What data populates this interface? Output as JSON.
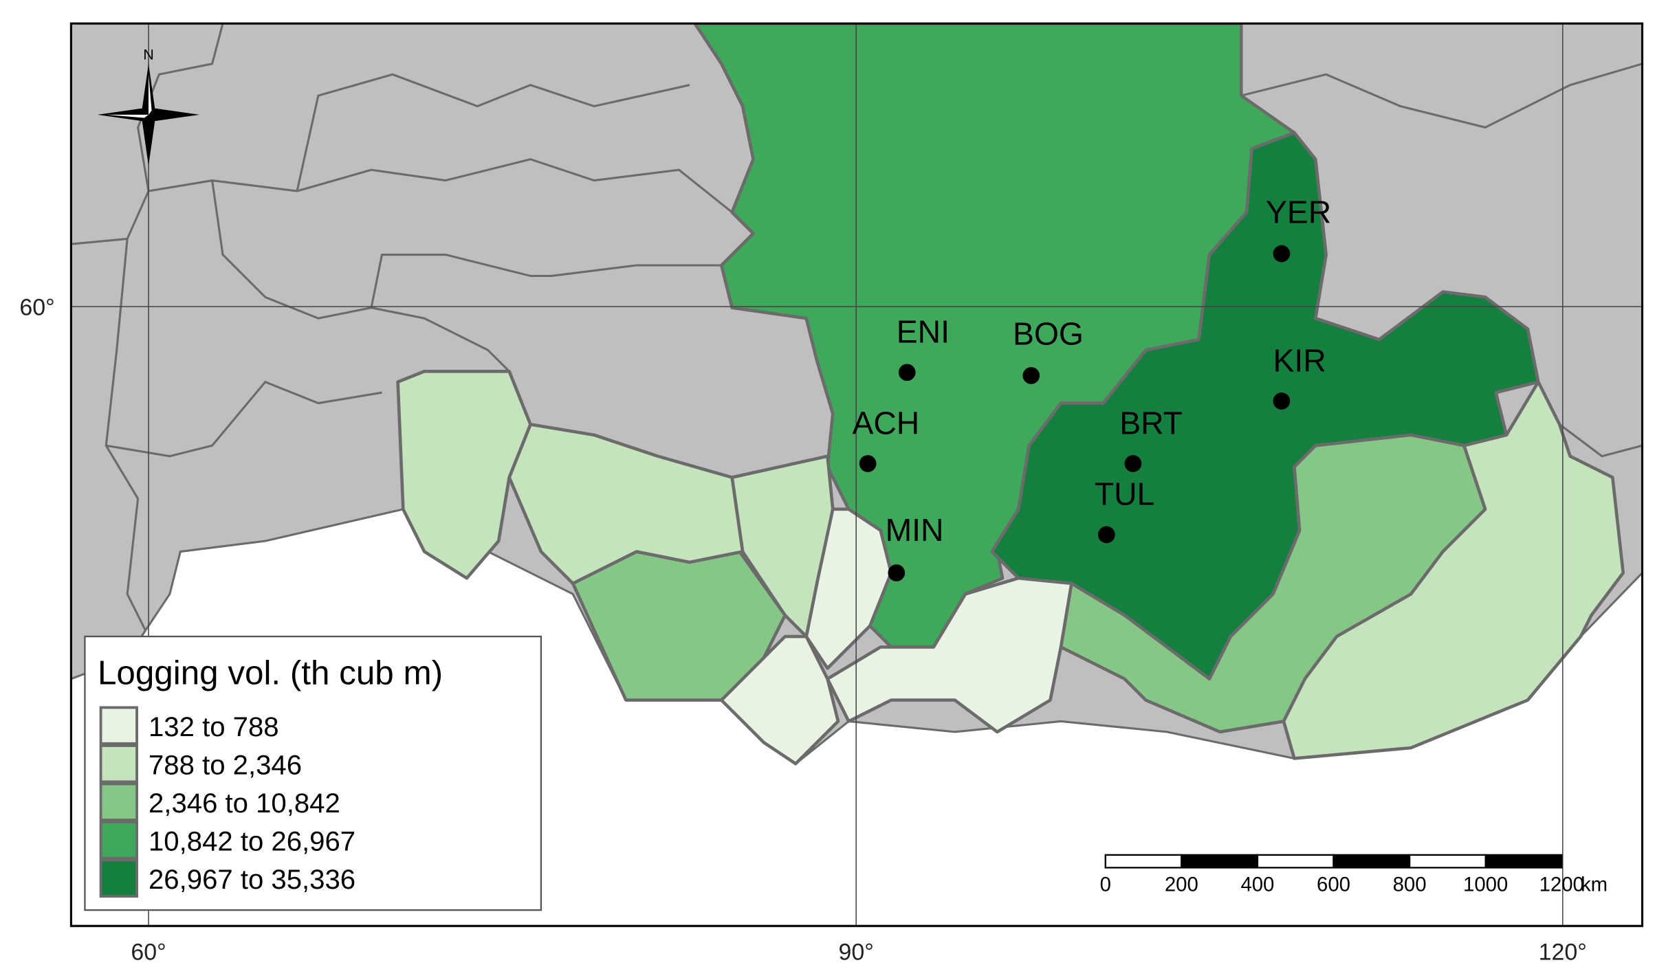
{
  "north": "N",
  "graticule": {
    "lon_labels": [
      "60°",
      "90°",
      "120°"
    ],
    "lat_labels": [
      "60°"
    ]
  },
  "legend": {
    "title": "Logging vol. (th cub m)",
    "items": [
      {
        "label": "132 to 788",
        "color": "#e8f3e4"
      },
      {
        "label": "788 to 2,346",
        "color": "#c5e3bd"
      },
      {
        "label": "2,346 to 10,842",
        "color": "#86c787"
      },
      {
        "label": "10,842 to 26,967",
        "color": "#3fa85a"
      },
      {
        "label": "26,967 to 35,336",
        "color": "#157f3f"
      }
    ]
  },
  "cities": [
    "ENI",
    "BOG",
    "ACH",
    "MIN",
    "BRT",
    "TUL",
    "YER",
    "KIR"
  ],
  "scale_bar": {
    "labels": [
      "0",
      "200",
      "400",
      "600",
      "800",
      "1000",
      "1200"
    ],
    "unit": "km"
  }
}
